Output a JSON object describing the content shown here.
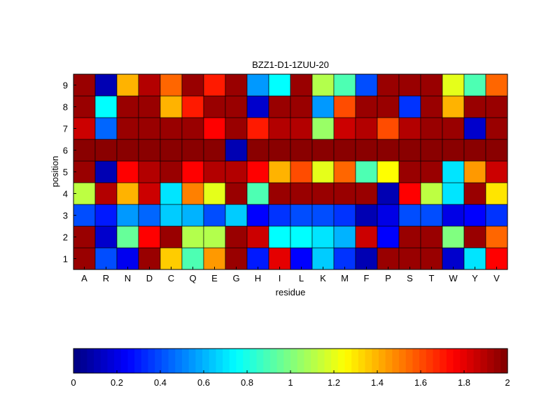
{
  "chart_data": {
    "type": "heatmap",
    "title": "BZZ1-D1-1ZUU-20",
    "xlabel": "residue",
    "ylabel": "position",
    "x_categories": [
      "A",
      "R",
      "N",
      "D",
      "C",
      "Q",
      "E",
      "G",
      "H",
      "I",
      "L",
      "K",
      "M",
      "F",
      "P",
      "S",
      "T",
      "W",
      "Y",
      "V"
    ],
    "y_categories": [
      "1",
      "2",
      "3",
      "4",
      "5",
      "6",
      "7",
      "8",
      "9"
    ],
    "colormap": "jet",
    "clim": [
      0,
      2
    ],
    "colorbar": {
      "orientation": "horizontal",
      "placement": "bottom",
      "ticks": [
        0,
        0.2,
        0.4,
        0.6,
        0.8,
        1,
        1.2,
        1.4,
        1.6,
        1.8,
        2
      ],
      "tick_labels": [
        "0",
        "0.2",
        "0.4",
        "0.6",
        "0.8",
        "1",
        "1.2",
        "1.4",
        "1.6",
        "1.8",
        "2"
      ]
    },
    "values": [
      [
        1.95,
        0.4,
        0.22,
        1.95,
        1.35,
        0.9,
        1.45,
        1.95,
        0.3,
        1.8,
        0.25,
        0.65,
        0.35,
        0.1,
        1.95,
        1.95,
        1.95,
        0.15,
        0.7,
        1.75
      ],
      [
        1.95,
        0.15,
        0.95,
        1.75,
        1.95,
        1.1,
        1.1,
        1.95,
        1.85,
        0.75,
        0.75,
        0.7,
        0.6,
        1.85,
        0.25,
        1.95,
        1.95,
        1.0,
        1.95,
        1.55
      ],
      [
        0.4,
        0.3,
        0.55,
        0.45,
        0.65,
        0.6,
        0.4,
        0.65,
        0.25,
        0.35,
        0.4,
        0.4,
        0.35,
        0.1,
        0.2,
        0.4,
        0.4,
        0.2,
        0.25,
        0.35
      ],
      [
        1.12,
        1.9,
        1.4,
        1.85,
        0.7,
        1.5,
        1.2,
        1.95,
        0.9,
        1.95,
        1.95,
        1.95,
        1.95,
        1.95,
        0.1,
        1.75,
        1.12,
        0.7,
        1.95,
        1.3
      ],
      [
        1.95,
        0.1,
        1.75,
        1.9,
        1.95,
        1.75,
        1.9,
        1.9,
        1.75,
        1.4,
        1.6,
        1.2,
        1.55,
        0.9,
        1.25,
        1.95,
        1.95,
        0.7,
        1.45,
        1.85
      ],
      [
        1.98,
        1.98,
        1.98,
        1.98,
        1.98,
        1.98,
        1.98,
        0.1,
        1.98,
        1.98,
        1.98,
        1.98,
        1.98,
        1.98,
        1.98,
        1.98,
        1.98,
        1.98,
        1.98,
        1.98
      ],
      [
        1.85,
        0.45,
        1.95,
        1.95,
        1.95,
        1.95,
        1.75,
        1.95,
        1.7,
        1.9,
        1.9,
        1.05,
        1.85,
        1.9,
        1.6,
        1.9,
        1.95,
        1.95,
        0.15,
        1.95
      ],
      [
        1.95,
        0.75,
        1.95,
        1.95,
        1.4,
        1.7,
        1.95,
        1.95,
        0.15,
        1.95,
        1.95,
        0.55,
        1.6,
        1.95,
        1.95,
        0.35,
        1.95,
        1.4,
        1.95,
        1.95
      ],
      [
        1.95,
        0.1,
        1.4,
        1.9,
        1.55,
        1.95,
        1.7,
        1.95,
        0.55,
        0.75,
        1.95,
        1.1,
        0.9,
        0.4,
        1.95,
        1.95,
        1.95,
        1.2,
        0.9,
        1.55
      ]
    ]
  }
}
